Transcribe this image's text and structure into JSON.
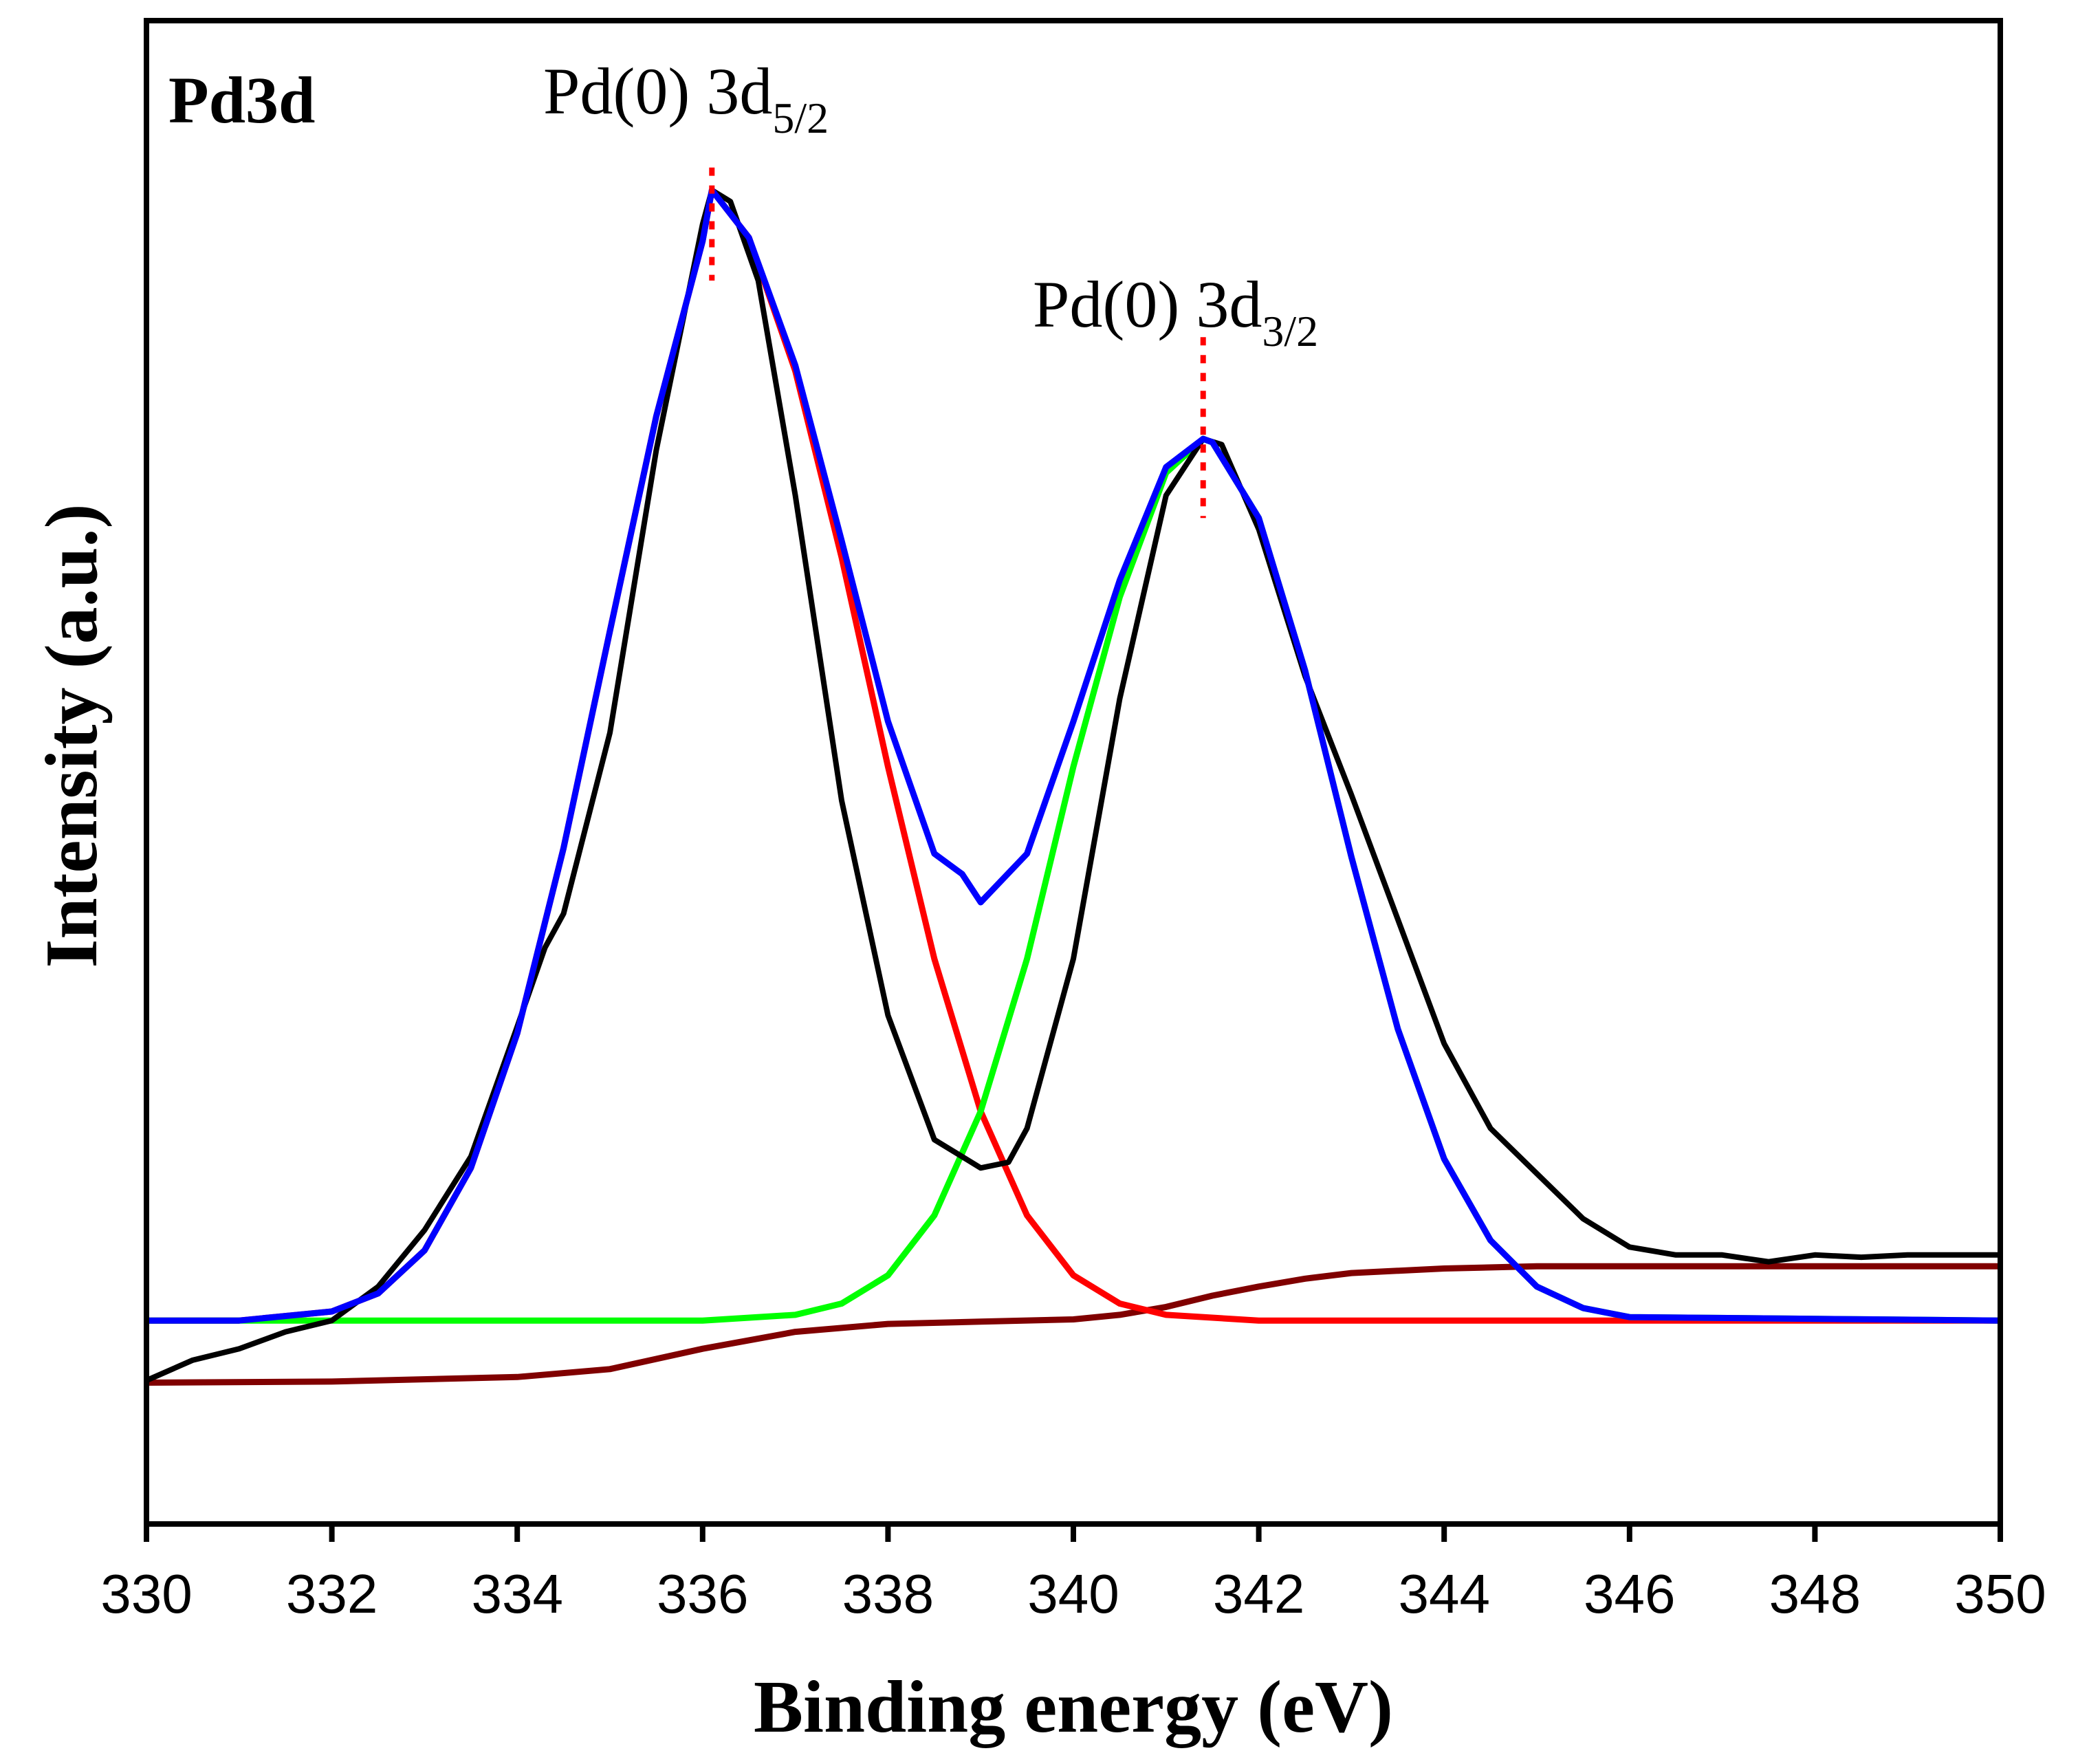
{
  "chart_data": {
    "type": "line",
    "panel_label": "Pd3d",
    "xlabel": "Binding energy (eV)",
    "ylabel": "Intensity (a.u.)",
    "xlim": [
      330,
      350
    ],
    "ylim": [
      -0.18,
      1.15
    ],
    "x_ticks": [
      330,
      332,
      334,
      336,
      338,
      340,
      342,
      344,
      346,
      348,
      350
    ],
    "x_tick_labels": [
      "330",
      "332",
      "334",
      "336",
      "338",
      "340",
      "342",
      "344",
      "346",
      "348",
      "350"
    ],
    "y_ticks_shown": false,
    "grid": false,
    "colors": {
      "raw": "#000000",
      "envelope": "#0000ff",
      "peak_3d52": "#ff0000",
      "peak_3d32": "#00ff00",
      "background": "#800000",
      "marker": "#ff0000",
      "axes": "#000000"
    },
    "annotations": [
      {
        "id": "pd0-3d52",
        "text_main": "Pd(0) 3d",
        "text_sub": "5/2",
        "x": 336.1,
        "y_top": 1.02,
        "y_bottom": 0.92
      },
      {
        "id": "pd0-3d32",
        "text_main": "Pd(0) 3d",
        "text_sub": "3/2",
        "x": 341.4,
        "y_top": 0.87,
        "y_bottom": 0.71
      }
    ],
    "series": [
      {
        "role": "background",
        "x": [
          330.0,
          332.0,
          334.0,
          335.0,
          336.0,
          337.0,
          338.0,
          339.0,
          340.0,
          340.5,
          341.0,
          341.5,
          342.0,
          342.5,
          343.0,
          344.0,
          345.0,
          346.0,
          348.0,
          350.0
        ],
        "y": [
          -0.055,
          -0.054,
          -0.05,
          -0.043,
          -0.025,
          -0.01,
          -0.003,
          -0.001,
          0.001,
          0.005,
          0.012,
          0.022,
          0.03,
          0.037,
          0.042,
          0.046,
          0.048,
          0.048,
          0.048,
          0.048
        ]
      },
      {
        "role": "peak_3d52",
        "x": [
          330,
          331,
          332,
          332.5,
          333,
          333.5,
          334,
          334.5,
          335,
          335.5,
          336,
          336.1,
          336.5,
          337,
          337.5,
          338,
          338.5,
          339,
          339.5,
          340,
          340.5,
          341,
          342,
          344,
          346,
          350
        ],
        "y": [
          0,
          0.0,
          0.008,
          0.024,
          0.062,
          0.135,
          0.254,
          0.418,
          0.61,
          0.8,
          0.955,
          1.0,
          0.958,
          0.84,
          0.675,
          0.49,
          0.32,
          0.185,
          0.093,
          0.04,
          0.015,
          0.005,
          0.0,
          0,
          0,
          0
        ]
      },
      {
        "role": "peak_3d32",
        "x": [
          330,
          334,
          336,
          337,
          337.5,
          338,
          338.5,
          339,
          339.5,
          340,
          340.5,
          341,
          341.4,
          341.5,
          342,
          342.5,
          343,
          343.5,
          344,
          344.5,
          345,
          345.5,
          346,
          350
        ],
        "y": [
          0,
          0,
          0.0,
          0.005,
          0.015,
          0.04,
          0.093,
          0.185,
          0.32,
          0.49,
          0.64,
          0.75,
          0.78,
          0.777,
          0.71,
          0.575,
          0.41,
          0.258,
          0.143,
          0.071,
          0.03,
          0.011,
          0.003,
          0
        ]
      },
      {
        "role": "envelope",
        "x": [
          330,
          331,
          332,
          332.5,
          333,
          333.5,
          334,
          334.5,
          335,
          335.5,
          336,
          336.1,
          336.5,
          337,
          337.5,
          338,
          338.5,
          338.8,
          339,
          339.5,
          340,
          340.5,
          341,
          341.4,
          341.5,
          342,
          342.5,
          343,
          343.5,
          344,
          344.5,
          345,
          345.5,
          346,
          350
        ],
        "y": [
          0,
          0.0,
          0.008,
          0.024,
          0.062,
          0.135,
          0.254,
          0.418,
          0.61,
          0.8,
          0.955,
          1.0,
          0.958,
          0.845,
          0.69,
          0.53,
          0.413,
          0.395,
          0.37,
          0.413,
          0.53,
          0.655,
          0.755,
          0.78,
          0.777,
          0.71,
          0.575,
          0.41,
          0.258,
          0.143,
          0.071,
          0.03,
          0.011,
          0.003,
          0
        ]
      },
      {
        "role": "raw",
        "x": [
          330.0,
          330.5,
          331.0,
          331.5,
          332.0,
          332.5,
          333.0,
          333.5,
          334.0,
          334.3,
          334.5,
          335.0,
          335.5,
          336.0,
          336.1,
          336.3,
          336.6,
          337.0,
          337.5,
          338.0,
          338.5,
          339.0,
          339.3,
          339.5,
          340.0,
          340.5,
          341.0,
          341.4,
          341.6,
          342.0,
          342.5,
          343.0,
          343.5,
          344.0,
          344.5,
          345.0,
          345.5,
          346.0,
          346.5,
          347.0,
          347.5,
          348.0,
          348.5,
          349.0,
          349.5,
          350.0
        ],
        "y": [
          -0.053,
          -0.035,
          -0.025,
          -0.01,
          0.0,
          0.03,
          0.08,
          0.145,
          0.26,
          0.33,
          0.36,
          0.52,
          0.77,
          0.97,
          1.0,
          0.99,
          0.92,
          0.73,
          0.46,
          0.27,
          0.16,
          0.135,
          0.14,
          0.17,
          0.32,
          0.55,
          0.73,
          0.78,
          0.775,
          0.7,
          0.57,
          0.465,
          0.355,
          0.245,
          0.17,
          0.13,
          0.09,
          0.065,
          0.058,
          0.058,
          0.052,
          0.058,
          0.056,
          0.058,
          0.058,
          0.058
        ]
      }
    ]
  }
}
